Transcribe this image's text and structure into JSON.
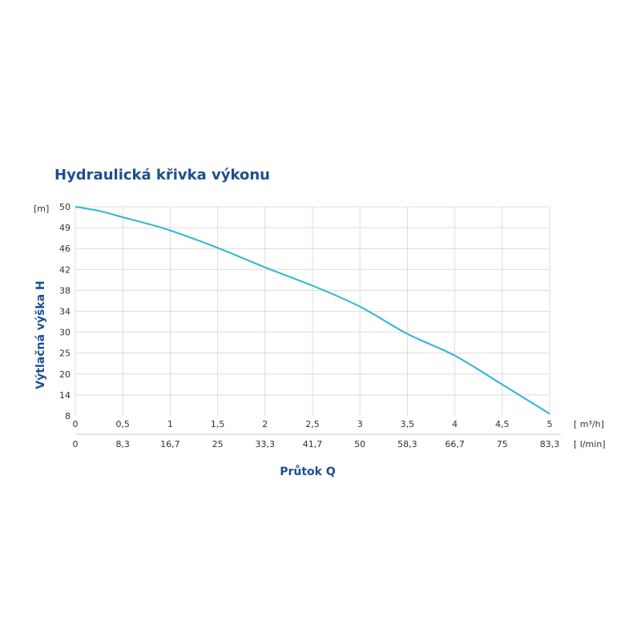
{
  "chart_data": {
    "type": "line",
    "title": "Hydraulická křivka výkonu",
    "ylabel": "Výtlačná výška H",
    "xlabel": "Průtok Q",
    "y_unit": "[m]",
    "x_unit_primary": "[ m³/h]",
    "x_unit_secondary": "[ l/min]",
    "y_tick_labels": [
      "50",
      "49",
      "46",
      "42",
      "38",
      "34",
      "30",
      "25",
      "20",
      "14",
      "8"
    ],
    "x_tick_labels_primary": [
      "0",
      "0,5",
      "1",
      "1,5",
      "2",
      "2,5",
      "3",
      "3,5",
      "4",
      "4,5",
      "5"
    ],
    "x_tick_labels_secondary": [
      "0",
      "8,3",
      "16,7",
      "25",
      "33,3",
      "41,7",
      "50",
      "58,3",
      "66,7",
      "75",
      "83,3"
    ],
    "xlim": [
      0,
      5
    ],
    "grid": true,
    "curve_color": "#2bb5d6",
    "series": [
      {
        "x": [
          0,
          0.25,
          0.5,
          0.75,
          1,
          1.5,
          2,
          2.5,
          3,
          3.5,
          4,
          4.5,
          5
        ],
        "y": [
          50,
          49.8,
          49.5,
          49.2,
          48.6,
          46.1,
          42.4,
          38.9,
          34.9,
          29.6,
          24.4,
          17.0,
          8.6
        ]
      }
    ]
  }
}
